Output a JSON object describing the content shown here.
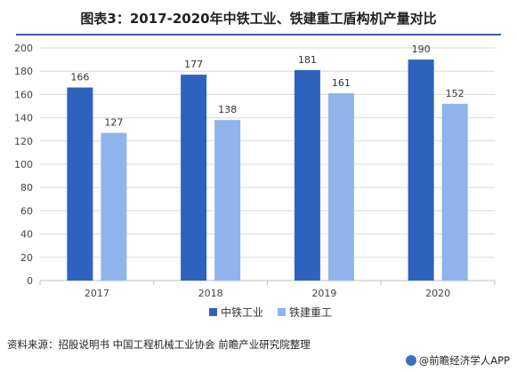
{
  "title": "图表3：2017-2020年中铁工业、铁建重工盾构机产量对比",
  "source": "资料来源：招股说明书 中国工程机械工业协会 前瞻产业研究院整理",
  "brand": "@前瞻经济学人APP",
  "brand_icon": "camera-icon",
  "colors": {
    "series1": "#2f62be",
    "series2": "#8eb4ea",
    "grid": "#d9d9d9",
    "accent": "#3b5ea8"
  },
  "chart_data": {
    "type": "bar",
    "categories": [
      "2017",
      "2018",
      "2019",
      "2020"
    ],
    "series": [
      {
        "name": "中铁工业",
        "values": [
          166,
          177,
          181,
          190
        ]
      },
      {
        "name": "铁建重工",
        "values": [
          127,
          138,
          161,
          152
        ]
      }
    ],
    "ylim": [
      0,
      200
    ],
    "yticks": [
      0,
      20,
      40,
      60,
      80,
      100,
      120,
      140,
      160,
      180,
      200
    ],
    "grid": true,
    "legend": "bottom-center"
  }
}
